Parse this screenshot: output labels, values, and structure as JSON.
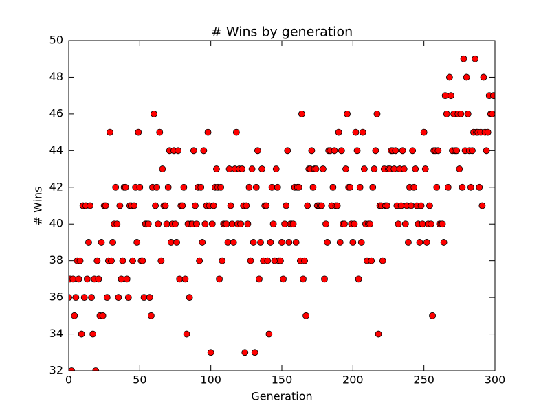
{
  "chart_data": {
    "type": "scatter",
    "title": "# Wins by generation",
    "x_label": "Generation",
    "y_label": "# Wins",
    "color": "#ff0000",
    "edge_color": "#000000",
    "xlim": [
      0,
      300
    ],
    "xticks": [
      0,
      50,
      100,
      150,
      200,
      250,
      300
    ],
    "ylim": [
      32,
      50
    ],
    "yticks": [
      32,
      34,
      36,
      38,
      40,
      42,
      44,
      46,
      48,
      50
    ],
    "x": [
      0,
      1,
      2,
      3,
      4,
      5,
      6,
      7,
      8,
      9,
      10,
      11,
      12,
      13,
      14,
      15,
      16,
      17,
      18,
      19,
      20,
      21,
      22,
      23,
      24,
      25,
      26,
      27,
      28,
      29,
      30,
      31,
      32,
      33,
      34,
      35,
      36,
      37,
      38,
      39,
      40,
      41,
      42,
      43,
      44,
      45,
      46,
      47,
      48,
      49,
      50,
      51,
      52,
      53,
      54,
      55,
      56,
      57,
      58,
      59,
      60,
      61,
      62,
      63,
      64,
      65,
      66,
      67,
      68,
      69,
      70,
      71,
      72,
      73,
      74,
      75,
      76,
      77,
      78,
      79,
      80,
      81,
      82,
      83,
      84,
      85,
      86,
      87,
      88,
      89,
      90,
      91,
      92,
      93,
      94,
      95,
      96,
      97,
      98,
      99,
      100,
      101,
      102,
      103,
      104,
      105,
      106,
      107,
      108,
      109,
      110,
      111,
      112,
      113,
      114,
      115,
      116,
      117,
      118,
      119,
      120,
      121,
      122,
      123,
      124,
      125,
      126,
      127,
      128,
      129,
      130,
      131,
      132,
      133,
      134,
      135,
      136,
      137,
      138,
      139,
      140,
      141,
      142,
      143,
      144,
      145,
      146,
      147,
      148,
      149,
      150,
      151,
      152,
      153,
      154,
      155,
      156,
      157,
      158,
      159,
      160,
      161,
      162,
      163,
      164,
      165,
      166,
      167,
      168,
      169,
      170,
      171,
      172,
      173,
      174,
      175,
      176,
      177,
      178,
      179,
      180,
      181,
      182,
      183,
      184,
      185,
      186,
      187,
      188,
      189,
      190,
      191,
      192,
      193,
      194,
      195,
      196,
      197,
      198,
      199,
      200,
      201,
      202,
      203,
      204,
      205,
      206,
      207,
      208,
      209,
      210,
      211,
      212,
      213,
      214,
      215,
      216,
      217,
      218,
      219,
      220,
      221,
      222,
      223,
      224,
      225,
      226,
      227,
      228,
      229,
      230,
      231,
      232,
      233,
      234,
      235,
      236,
      237,
      238,
      239,
      240,
      241,
      242,
      243,
      244,
      245,
      246,
      247,
      248,
      249,
      250,
      251,
      252,
      253,
      254,
      255,
      256,
      257,
      258,
      259,
      260,
      261,
      262,
      263,
      264,
      265,
      266,
      267,
      268,
      269,
      270,
      271,
      272,
      273,
      274,
      275,
      276,
      277,
      278,
      279,
      280,
      281,
      282,
      283,
      284,
      285,
      286,
      287,
      288,
      289,
      290,
      291,
      292,
      293,
      294,
      295,
      296,
      297,
      298,
      299
    ],
    "values": [
      36,
      37,
      32,
      37,
      35,
      36,
      38,
      37,
      38,
      34,
      41,
      36,
      41,
      37,
      39,
      41,
      36,
      34,
      37,
      32,
      38,
      37,
      35,
      39,
      35,
      41,
      41,
      36,
      38,
      45,
      38,
      39,
      40,
      42,
      40,
      36,
      41,
      37,
      38,
      42,
      42,
      37,
      36,
      41,
      41,
      38,
      41,
      42,
      39,
      45,
      42,
      38,
      38,
      36,
      40,
      40,
      40,
      36,
      35,
      42,
      46,
      41,
      42,
      40,
      45,
      38,
      43,
      41,
      41,
      40,
      42,
      44,
      39,
      40,
      44,
      40,
      39,
      44,
      37,
      41,
      41,
      42,
      37,
      34,
      40,
      36,
      40,
      40,
      44,
      41,
      40,
      42,
      38,
      42,
      39,
      44,
      40,
      41,
      45,
      41,
      33,
      40,
      41,
      42,
      43,
      42,
      37,
      42,
      38,
      40,
      40,
      40,
      39,
      43,
      41,
      40,
      39,
      43,
      45,
      40,
      43,
      40,
      43,
      41,
      33,
      41,
      40,
      42,
      38,
      43,
      39,
      33,
      42,
      44,
      37,
      39,
      43,
      38,
      41,
      41,
      38,
      34,
      39,
      42,
      40,
      38,
      43,
      42,
      38,
      38,
      39,
      37,
      40,
      41,
      44,
      39,
      40,
      40,
      40,
      42,
      39,
      42,
      42,
      38,
      46,
      37,
      38,
      35,
      41,
      43,
      43,
      44,
      42,
      43,
      43,
      41,
      41,
      41,
      41,
      43,
      37,
      40,
      39,
      44,
      44,
      41,
      42,
      44,
      41,
      41,
      45,
      39,
      44,
      40,
      40,
      43,
      46,
      42,
      42,
      40,
      39,
      40,
      45,
      44,
      37,
      42,
      39,
      45,
      43,
      40,
      38,
      40,
      40,
      38,
      42,
      43,
      44,
      46,
      34,
      41,
      41,
      38,
      43,
      41,
      41,
      43,
      43,
      44,
      44,
      43,
      44,
      41,
      40,
      43,
      41,
      44,
      43,
      40,
      41,
      39,
      42,
      41,
      44,
      42,
      43,
      41,
      40,
      39,
      41,
      40,
      45,
      43,
      39,
      40,
      41,
      40,
      35,
      44,
      44,
      42,
      44,
      40,
      40,
      40,
      39,
      47,
      46,
      42,
      48,
      47,
      44,
      46,
      44,
      44,
      46,
      43,
      46,
      42,
      49,
      44,
      48,
      46,
      44,
      42,
      44,
      45,
      49,
      45,
      45,
      42,
      45,
      41,
      48,
      45,
      44,
      45,
      47,
      46,
      46,
      47
    ]
  }
}
